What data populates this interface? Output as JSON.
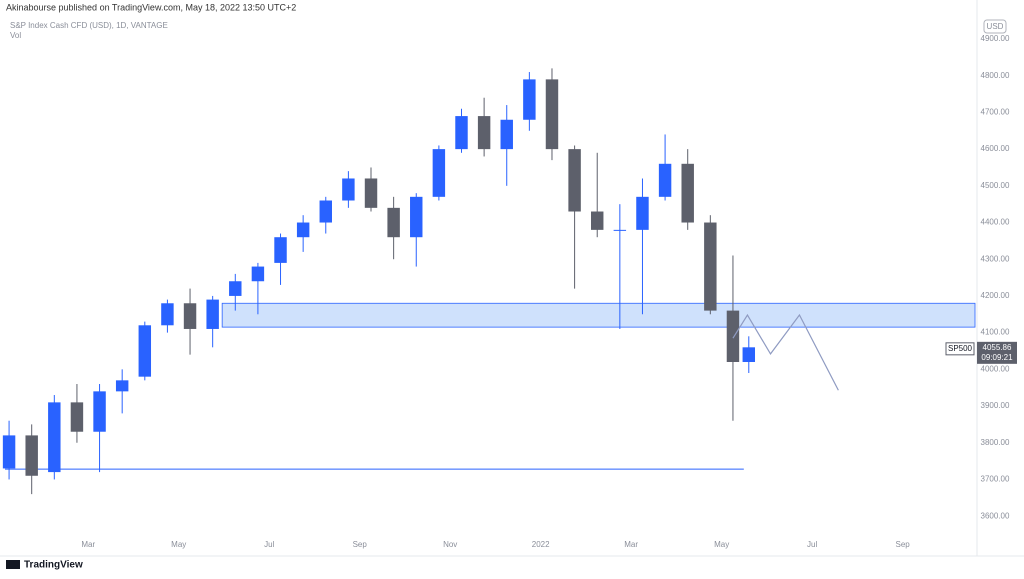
{
  "header": {
    "publisher": "Akinabourse published on TradingView.com, May 18, 2022 13:50 UTC+2",
    "brand": "TradingView"
  },
  "chart_data": {
    "type": "candlestick",
    "title": "S&P Index Cash CFD (USD), 1D, VANTAGE",
    "subtitle": "Vol",
    "currency": "USD",
    "up_color": "#2962ff",
    "down_color": "#5d606b",
    "x": [
      0.25,
      0.75,
      1.25,
      1.75,
      2.25,
      2.75,
      3.25,
      3.75,
      4.25,
      4.75,
      5.25,
      5.75,
      6.25,
      6.75,
      7.25,
      7.75,
      8.25,
      8.75,
      9.25,
      9.75,
      10.25,
      10.75,
      11.25,
      11.75,
      12.25,
      12.75,
      13.25,
      13.75,
      14.25,
      14.75,
      15.25,
      15.75,
      16.25,
      16.6
    ],
    "open": [
      3730,
      3820,
      3720,
      3910,
      3830,
      3940,
      3980,
      4120,
      4180,
      4110,
      4200,
      4240,
      4290,
      4360,
      4400,
      4460,
      4520,
      4440,
      4360,
      4470,
      4600,
      4690,
      4600,
      4680,
      4790,
      4600,
      4430,
      4380,
      4380,
      4470,
      4560,
      4400,
      4160,
      4020
    ],
    "high": [
      3860,
      3850,
      3930,
      3960,
      3960,
      4000,
      4130,
      4190,
      4220,
      4200,
      4260,
      4290,
      4370,
      4420,
      4470,
      4540,
      4550,
      4470,
      4480,
      4610,
      4710,
      4740,
      4720,
      4810,
      4820,
      4610,
      4590,
      4450,
      4520,
      4640,
      4600,
      4420,
      4310,
      4090
    ],
    "low": [
      3700,
      3660,
      3700,
      3800,
      3720,
      3880,
      3970,
      4100,
      4040,
      4060,
      4160,
      4150,
      4230,
      4320,
      4370,
      4440,
      4430,
      4300,
      4280,
      4460,
      4590,
      4580,
      4500,
      4650,
      4570,
      4220,
      4360,
      4110,
      4150,
      4460,
      4380,
      4150,
      3860,
      3990
    ],
    "close": [
      3820,
      3710,
      3910,
      3830,
      3940,
      3970,
      4120,
      4180,
      4110,
      4190,
      4240,
      4280,
      4360,
      4400,
      4460,
      4520,
      4440,
      4360,
      4470,
      4600,
      4690,
      4600,
      4680,
      4790,
      4600,
      4430,
      4380,
      4380,
      4470,
      4560,
      4400,
      4160,
      4020,
      4060
    ],
    "xlim": [
      0.16,
      21.6
    ],
    "xticks": [
      {
        "value": 2,
        "label": "Mar"
      },
      {
        "value": 4,
        "label": "May"
      },
      {
        "value": 6,
        "label": "Jul"
      },
      {
        "value": 8,
        "label": "Sep"
      },
      {
        "value": 10,
        "label": "Nov"
      },
      {
        "value": 12,
        "label": "2022"
      },
      {
        "value": 14,
        "label": "Mar"
      },
      {
        "value": 16,
        "label": "May"
      },
      {
        "value": 18,
        "label": "Jul"
      },
      {
        "value": 20,
        "label": "Sep"
      }
    ],
    "ylim": [
      3535,
      4930
    ],
    "yticks": [
      {
        "value": 3600,
        "label": "3600.00"
      },
      {
        "value": 3700,
        "label": "3700.00"
      },
      {
        "value": 3800,
        "label": "3800.00"
      },
      {
        "value": 3900,
        "label": "3900.00"
      },
      {
        "value": 4000,
        "label": "4000.00"
      },
      {
        "value": 4100,
        "label": "4100.00"
      },
      {
        "value": 4200,
        "label": "4200.00"
      },
      {
        "value": 4300,
        "label": "4300.00"
      },
      {
        "value": 4400,
        "label": "4400.00"
      },
      {
        "value": 4500,
        "label": "4500.00"
      },
      {
        "value": 4600,
        "label": "4600.00"
      },
      {
        "value": 4700,
        "label": "4700.00"
      },
      {
        "value": 4800,
        "label": "4800.00"
      },
      {
        "value": 4900,
        "label": "4900.00"
      }
    ],
    "zone": {
      "x_start": 4.96,
      "low": 4115,
      "high": 4180,
      "color": "#bbd4fb"
    },
    "support": {
      "x_start": 0.16,
      "x_end": 16.49,
      "value": 3728,
      "color": "#2962ff"
    },
    "projection": {
      "x": [
        16.25,
        16.57,
        17.08,
        17.72,
        18.58
      ],
      "values": [
        4085,
        4148,
        4042,
        4148,
        3943
      ],
      "color": "#8f9bc2"
    },
    "price_label": {
      "symbol": "SP500",
      "value": 4055.86,
      "countdown": "09:09:21"
    }
  }
}
